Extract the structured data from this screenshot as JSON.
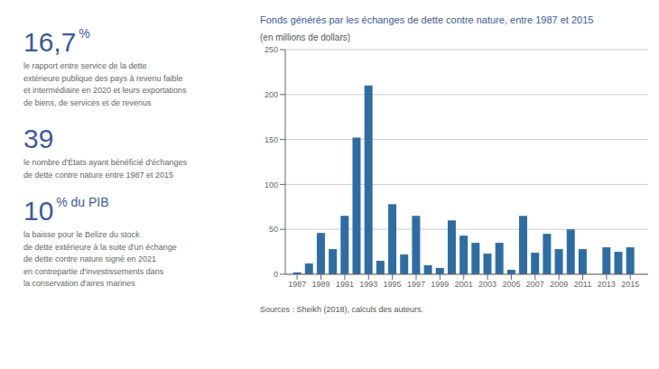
{
  "chart_data": {
    "type": "bar",
    "title": "Fonds générés par les échanges de dette contre nature, entre 1987 et 2015",
    "subtitle": "(en millions de dollars)",
    "source": "Sources : Sheikh (2018), calculs des auteurs.",
    "x": [
      1987,
      1988,
      1989,
      1990,
      1991,
      1992,
      1993,
      1994,
      1995,
      1996,
      1997,
      1998,
      1999,
      2000,
      2001,
      2002,
      2003,
      2004,
      2005,
      2006,
      2007,
      2008,
      2009,
      2010,
      2011,
      2012,
      2013,
      2014,
      2015
    ],
    "values": [
      2,
      12,
      46,
      28,
      65,
      152,
      210,
      15,
      78,
      22,
      65,
      10,
      7,
      60,
      43,
      35,
      23,
      35,
      5,
      65,
      24,
      45,
      28,
      50,
      28,
      0,
      30,
      25,
      30
    ],
    "color": "#2e6da4",
    "xlim": [
      1986.0,
      2016.5
    ],
    "xticks": [
      1987,
      1989,
      1991,
      1993,
      1995,
      1997,
      1999,
      2001,
      2003,
      2005,
      2007,
      2009,
      2011,
      2013,
      2015
    ],
    "ylim": [
      0,
      250
    ],
    "yticks": [
      0,
      50,
      100,
      150,
      200,
      250
    ],
    "grid": true,
    "annotations": [
      {
        "big": "16,7",
        "sup": " %",
        "text": "le rapport entre service de la dette\nextérieure publique des pays à revenu faible\net intermédiaire en 2020 et leurs exportations\nde biens, de services et de revenus"
      },
      {
        "big": "39",
        "text": "le nombre d'États ayant bénéficié d'échanges\nde dette contre nature entre 1987 et 2015"
      },
      {
        "big": "10",
        "sup": " % du PIB",
        "text": "la baisse pour le Belize du stock\nde dette extérieure à la suite d'un échange\nde dette contre nature signé en 2021\nen contrepartie d'investissements dans\nla conservation d'aires marines"
      }
    ]
  }
}
